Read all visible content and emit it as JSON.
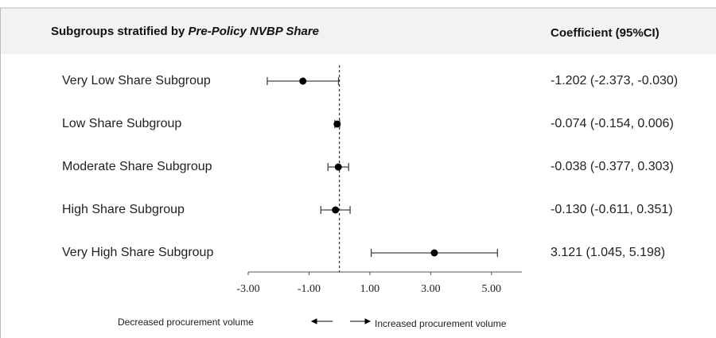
{
  "chart_data": {
    "type": "forest",
    "header_left": "Subgroups stratified by ",
    "header_left_italic": "Pre-Policy NVBP Share",
    "header_right": "Coefficient (95%CI)",
    "categories": [
      "Very Low Share Subgroup",
      "Low Share Subgroup",
      "Moderate Share Subgroup",
      "High Share Subgroup",
      "Very High Share Subgroup"
    ],
    "values": [
      -1.202,
      -0.074,
      -0.038,
      -0.13,
      3.121
    ],
    "lower": [
      -2.373,
      -0.154,
      -0.377,
      -0.611,
      1.045
    ],
    "upper": [
      -0.03,
      0.006,
      0.303,
      0.351,
      5.198
    ],
    "value_labels": [
      "-1.202 (-2.373, -0.030)",
      "-0.074 (-0.154, 0.006)",
      "-0.038 (-0.377, 0.303)",
      "-0.130 (-0.611, 0.351)",
      "3.121 (1.045, 5.198)"
    ],
    "reference_line": 0,
    "xlim": [
      -3,
      6
    ],
    "xticks": [
      {
        "value": -3,
        "label": "-3.00"
      },
      {
        "value": -1,
        "label": "-1.00"
      },
      {
        "value": 1,
        "label": "1.00"
      },
      {
        "value": 3,
        "label": "3.00"
      },
      {
        "value": 5,
        "label": "5.00"
      }
    ],
    "legend_left": "Decreased procurement volume",
    "legend_right": "Increased procurement volume",
    "color": "#000000"
  }
}
